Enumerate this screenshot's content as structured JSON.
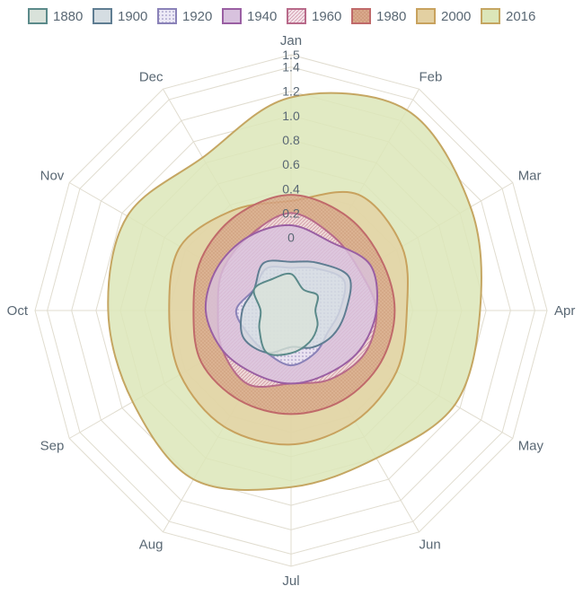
{
  "chart_data": {
    "type": "radar",
    "categories": [
      "Jan",
      "Feb",
      "Mar",
      "Apr",
      "May",
      "Jun",
      "Jul",
      "Aug",
      "Sep",
      "Oct",
      "Nov",
      "Dec"
    ],
    "r_ticks": [
      "0",
      "0.2",
      "0.4",
      "0.6",
      "0.8",
      "1.0",
      "1.2",
      "1.4",
      "1.5"
    ],
    "r_tick_values": [
      0,
      0.2,
      0.4,
      0.6,
      0.8,
      1.0,
      1.2,
      1.4,
      1.5
    ],
    "r_range": [
      -0.6,
      1.5
    ],
    "legend_position": "top",
    "grid": true,
    "series": [
      {
        "name": "1880",
        "color": "#5b8a8a",
        "fill": "#d9e2da",
        "values": [
          -0.3,
          -0.4,
          -0.35,
          -0.4,
          -0.35,
          -0.3,
          -0.25,
          -0.2,
          -0.3,
          -0.35,
          -0.25,
          -0.3
        ]
      },
      {
        "name": "1900",
        "color": "#5f7d92",
        "fill": "#d5dde2",
        "values": [
          -0.2,
          -0.15,
          -0.05,
          -0.15,
          -0.2,
          -0.25,
          -0.3,
          -0.2,
          -0.15,
          -0.2,
          -0.25,
          -0.15
        ]
      },
      {
        "name": "1920",
        "color": "#8a82b8",
        "fill": "#e6e2f2",
        "values": [
          -0.25,
          -0.2,
          -0.1,
          -0.2,
          -0.25,
          -0.2,
          -0.15,
          -0.2,
          -0.2,
          -0.15,
          -0.25,
          -0.2
        ]
      },
      {
        "name": "1940",
        "color": "#9a5fa3",
        "fill": "#d8c2de",
        "values": [
          0.1,
          0.05,
          0.15,
          0.1,
          0.05,
          0.0,
          0.0,
          0.0,
          0.05,
          0.1,
          0.1,
          0.1
        ]
      },
      {
        "name": "1960",
        "color": "#b86a8a",
        "fill": "#f2dde4",
        "values": [
          0.2,
          0.1,
          0.05,
          0.1,
          0.1,
          0.05,
          0.0,
          0.1,
          0.05,
          0.0,
          0.05,
          0.1
        ]
      },
      {
        "name": "1980",
        "color": "#c06a6a",
        "fill": "#dcae93",
        "values": [
          0.35,
          0.3,
          0.25,
          0.25,
          0.25,
          0.25,
          0.25,
          0.25,
          0.25,
          0.2,
          0.25,
          0.3
        ]
      },
      {
        "name": "2000",
        "color": "#c8a25e",
        "fill": "#e3d0a2",
        "values": [
          0.3,
          0.5,
          0.45,
          0.35,
          0.4,
          0.45,
          0.5,
          0.5,
          0.45,
          0.4,
          0.45,
          0.35
        ]
      },
      {
        "name": "2016",
        "color": "#c5a662",
        "fill": "#dce6b9",
        "values": [
          1.15,
          1.3,
          1.1,
          0.95,
          0.95,
          0.8,
          0.85,
          1.0,
          0.9,
          0.9,
          0.95,
          0.85
        ]
      }
    ]
  }
}
